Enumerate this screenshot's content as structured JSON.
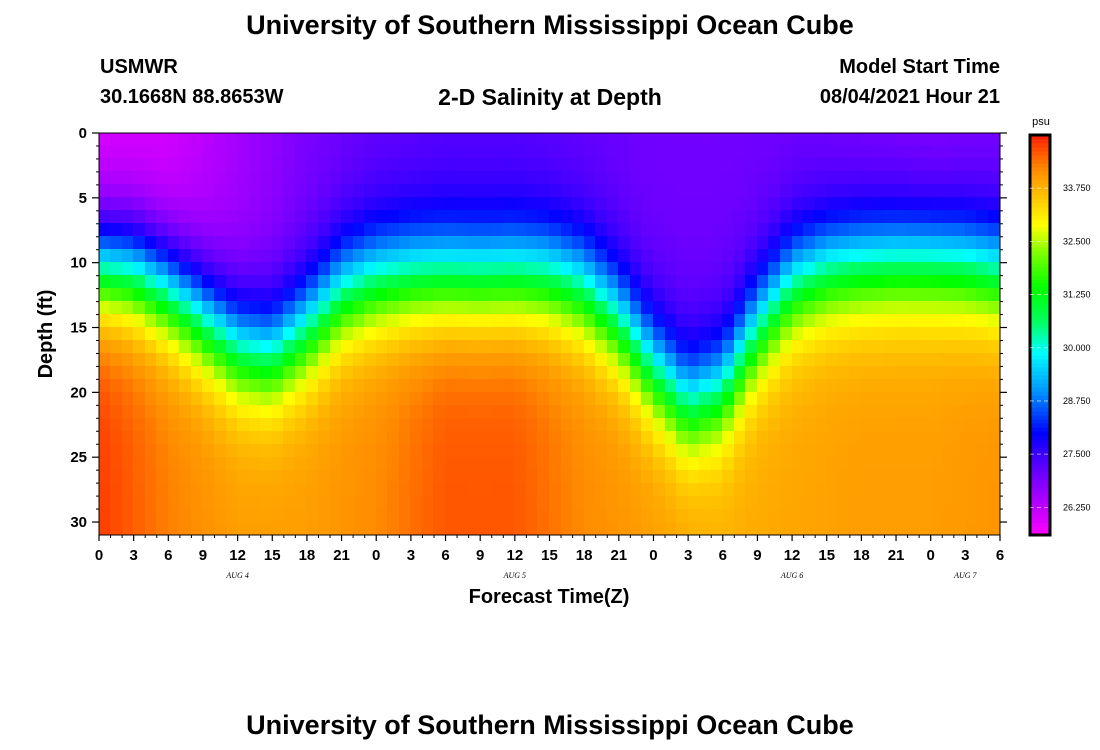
{
  "header": {
    "title": "University of Southern Mississippi Ocean Cube",
    "station": "USMWR",
    "coords": "30.1668N  88.8653W",
    "subtitle": "2-D Salinity at Depth",
    "model_start_label": "Model Start Time",
    "model_start_value": "08/04/2021 Hour 21"
  },
  "footer": {
    "title": "University of Southern Mississippi Ocean Cube"
  },
  "chart_data": {
    "type": "heatmap",
    "xlabel": "Forecast Time(Z)",
    "ylabel": "Depth (ft)",
    "x_tick_labels": [
      "0",
      "3",
      "6",
      "9",
      "12",
      "15",
      "18",
      "21",
      "0",
      "3",
      "6",
      "9",
      "12",
      "15",
      "18",
      "21",
      "0",
      "3",
      "6",
      "9",
      "12",
      "15",
      "18",
      "21",
      "0",
      "3",
      "6"
    ],
    "x_range_hours": [
      0,
      78
    ],
    "x_tick_step_hours": 3,
    "date_labels": [
      {
        "label": "AUG  4",
        "hour": 12
      },
      {
        "label": "AUG  5",
        "hour": 36
      },
      {
        "label": "AUG  6",
        "hour": 60
      },
      {
        "label": "AUG  7",
        "hour": 75
      }
    ],
    "y_ticks": [
      0,
      5,
      10,
      15,
      20,
      25,
      30
    ],
    "ylim": [
      0,
      31
    ],
    "y_inverted": true,
    "colorbar": {
      "unit": "psu",
      "range": [
        25.6,
        35.0
      ],
      "tick_labels": [
        "33.750",
        "32.500",
        "31.250",
        "30.000",
        "28.750",
        "27.500",
        "26.250"
      ],
      "tick_values": [
        33.75,
        32.5,
        31.25,
        30.0,
        28.75,
        27.5,
        26.25
      ],
      "colors": [
        {
          "v": 25.6,
          "c": "#ff00ff"
        },
        {
          "v": 26.6,
          "c": "#9b00ff"
        },
        {
          "v": 27.5,
          "c": "#3c00ff"
        },
        {
          "v": 28.0,
          "c": "#0000ff"
        },
        {
          "v": 29.0,
          "c": "#0096ff"
        },
        {
          "v": 29.9,
          "c": "#00ffff"
        },
        {
          "v": 30.6,
          "c": "#00ff64"
        },
        {
          "v": 31.4,
          "c": "#00ff00"
        },
        {
          "v": 32.2,
          "c": "#78ff00"
        },
        {
          "v": 32.9,
          "c": "#ffff00"
        },
        {
          "v": 33.6,
          "c": "#ffc000"
        },
        {
          "v": 34.2,
          "c": "#ff8c00"
        },
        {
          "v": 35.0,
          "c": "#ff2000"
        }
      ]
    },
    "series": [
      {
        "quantity": "halocline depth (ft)",
        "hours": [
          0,
          3,
          6,
          9,
          12,
          15,
          18,
          21,
          24,
          27,
          30,
          33,
          36,
          39,
          42,
          45,
          48,
          51,
          54,
          57,
          60,
          63,
          66,
          69,
          72,
          75,
          78
        ],
        "values": [
          10.5,
          10.8,
          12.2,
          14.3,
          16.5,
          17.2,
          15.2,
          12.5,
          11.5,
          11.2,
          11.2,
          11.3,
          11.2,
          11.3,
          12.2,
          14.5,
          18.2,
          21.0,
          19.8,
          15.2,
          11.8,
          10.6,
          10.2,
          10.0,
          10.0,
          10.2,
          10.8
        ]
      },
      {
        "quantity": "deep-layer salinity (psu)",
        "hours": [
          0,
          6,
          12,
          18,
          24,
          30,
          36,
          42,
          48,
          54,
          60,
          66,
          72,
          78
        ],
        "values": [
          34.8,
          34.3,
          34.0,
          34.0,
          34.2,
          34.6,
          34.6,
          34.2,
          34.0,
          33.8,
          33.9,
          34.0,
          34.0,
          34.1
        ]
      },
      {
        "quantity": "surface salinity (psu)",
        "hours": [
          0,
          6,
          12,
          18,
          24,
          30,
          36,
          42,
          48,
          54,
          60,
          66,
          72,
          78
        ],
        "values": [
          25.9,
          26.0,
          26.5,
          26.9,
          27.1,
          27.2,
          27.2,
          27.1,
          27.0,
          27.0,
          27.0,
          26.9,
          26.8,
          26.9
        ]
      }
    ]
  }
}
